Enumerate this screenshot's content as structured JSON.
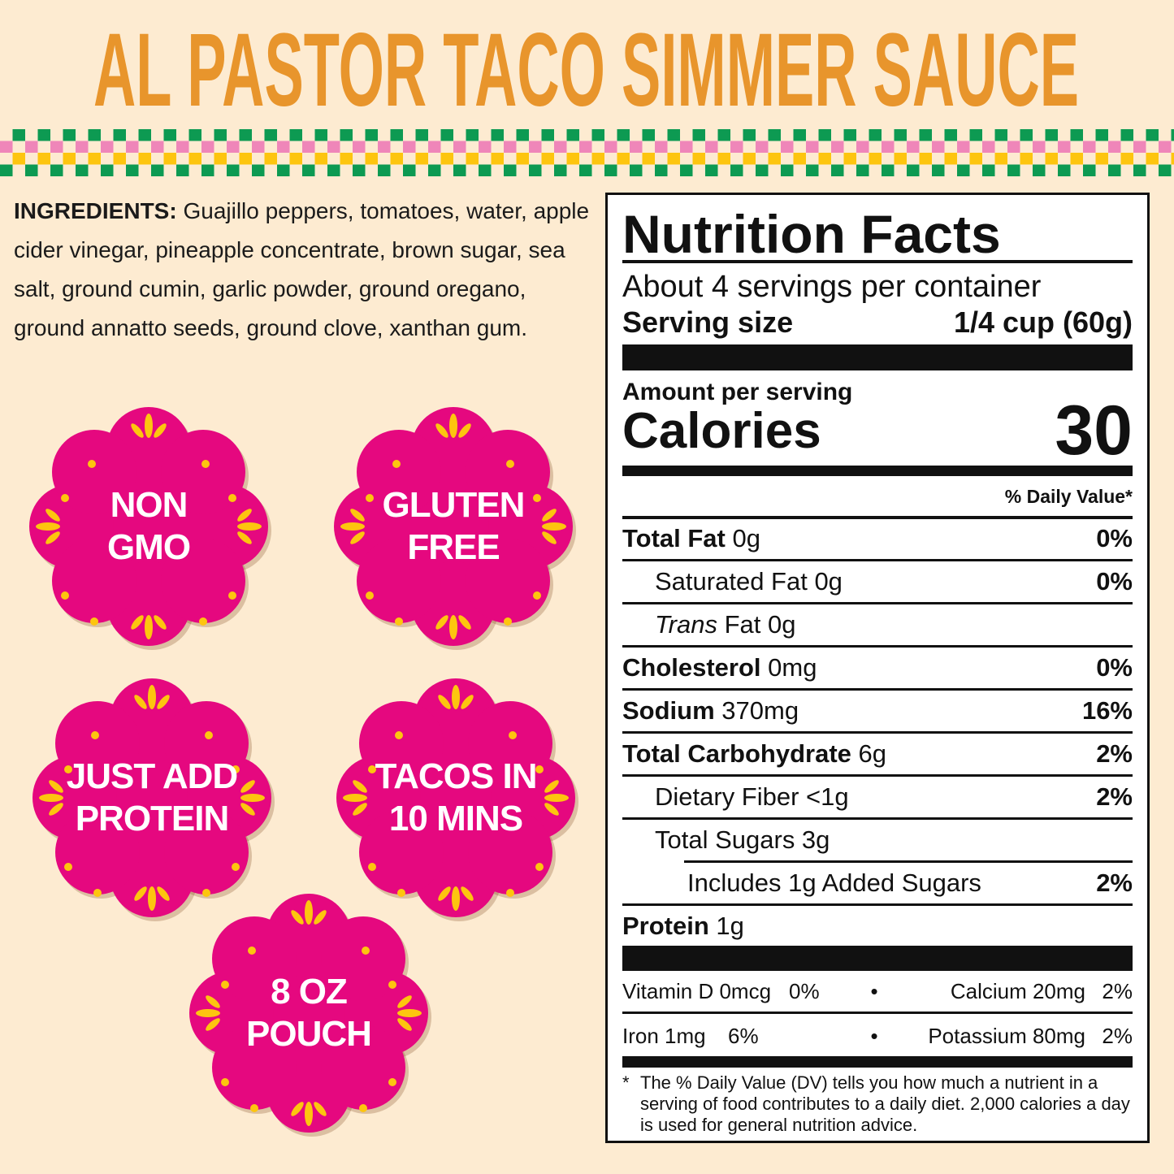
{
  "title": "AL PASTOR TACO SIMMER SAUCE",
  "colors": {
    "background": "#fdebd1",
    "title": "#e8952c",
    "badge": "#e5087f",
    "badge_accent": "#fdc50f",
    "checker_green": "#0d9a52",
    "checker_pink": "#ef86b9",
    "checker_yellow": "#fdc50f"
  },
  "ingredients": {
    "label": "INGREDIENTS:",
    "text": " Guajillo peppers, tomatoes, water, apple cider vinegar, pineapple concentrate, brown sugar, sea salt, ground cumin, garlic powder, ground oregano, ground annatto seeds, ground clove, xanthan gum."
  },
  "badges": [
    {
      "line1": "NON",
      "line2": "GMO"
    },
    {
      "line1": "GLUTEN",
      "line2": "FREE"
    },
    {
      "line1": "JUST ADD",
      "line2": "PROTEIN"
    },
    {
      "line1": "TACOS IN",
      "line2": "10 MINS"
    },
    {
      "line1": "8 OZ",
      "line2": "POUCH"
    }
  ],
  "nutrition": {
    "title": "Nutrition Facts",
    "servings": "About 4 servings per container",
    "serving_size_label": "Serving size",
    "serving_size_value": "1/4 cup (60g)",
    "amount_label": "Amount per serving",
    "calories_label": "Calories",
    "calories_value": "30",
    "dv_header": "% Daily Value*",
    "rows": [
      {
        "name": "Total Fat",
        "amount": " 0g",
        "dv": "0%"
      },
      {
        "name": "Saturated Fat 0g",
        "amount": "",
        "dv": "0%"
      },
      {
        "name": "Trans",
        "amount": " Fat 0g",
        "dv": ""
      },
      {
        "name": "Cholesterol",
        "amount": " 0mg",
        "dv": "0%"
      },
      {
        "name": "Sodium",
        "amount": " 370mg",
        "dv": "16%"
      },
      {
        "name": "Total Carbohydrate",
        "amount": " 6g",
        "dv": "2%"
      },
      {
        "name": "Dietary Fiber <1g",
        "amount": "",
        "dv": "2%"
      },
      {
        "name": "Total Sugars 3g",
        "amount": "",
        "dv": ""
      },
      {
        "name": "Includes 1g Added Sugars",
        "amount": "",
        "dv": "2%"
      },
      {
        "name": "Protein",
        "amount": " 1g",
        "dv": ""
      }
    ],
    "vitamins": [
      {
        "left": "Vitamin D 0mcg",
        "left_dv": "0%",
        "right": "Calcium 20mg",
        "right_dv": "2%"
      },
      {
        "left": "Iron 1mg",
        "left_dv": "6%",
        "right": "Potassium 80mg",
        "right_dv": "2%"
      }
    ],
    "footnote_mark": "*",
    "footnote": "The % Daily Value (DV) tells you how much a nutrient in a serving of food contributes to a daily diet. 2,000 calories a day is used for general nutrition advice."
  }
}
